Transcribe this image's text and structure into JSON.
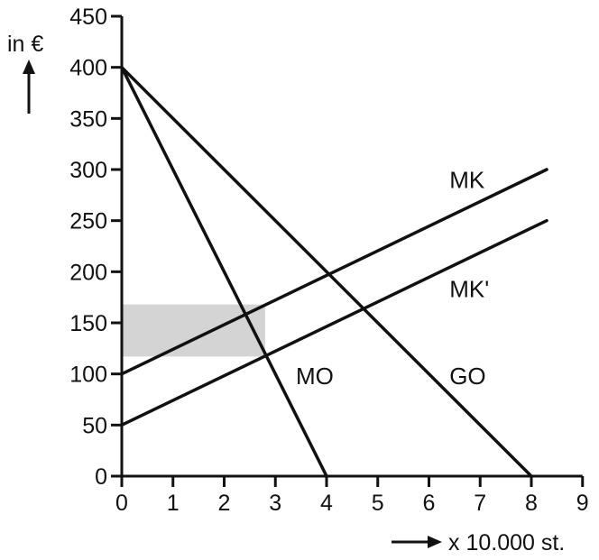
{
  "chart_data": {
    "type": "line",
    "title": "",
    "ylabel": "in €",
    "xlabel": "x 10.000 st.",
    "xlim": [
      0,
      9
    ],
    "ylim": [
      0,
      450
    ],
    "x_ticks": [
      0,
      1,
      2,
      3,
      4,
      5,
      6,
      7,
      8,
      9
    ],
    "y_ticks": [
      0,
      50,
      100,
      150,
      200,
      250,
      300,
      350,
      400,
      450
    ],
    "grid": false,
    "series": [
      {
        "name": "MO",
        "points": [
          [
            0,
            400
          ],
          [
            4,
            0
          ]
        ],
        "label_at": [
          3.4,
          90
        ]
      },
      {
        "name": "GO",
        "points": [
          [
            0,
            400
          ],
          [
            8,
            0
          ]
        ],
        "label_at": [
          6.4,
          90
        ]
      },
      {
        "name": "MK",
        "points": [
          [
            0,
            100
          ],
          [
            8.3,
            300
          ]
        ],
        "label_at": [
          6.4,
          282
        ]
      },
      {
        "name": "MK'",
        "points": [
          [
            0,
            50
          ],
          [
            8.3,
            250
          ]
        ],
        "label_at": [
          6.4,
          175
        ]
      }
    ],
    "shaded_regions": [
      {
        "x": [
          0,
          2.8
        ],
        "y": [
          117,
          168
        ],
        "color": "#d4d4d4"
      }
    ]
  }
}
